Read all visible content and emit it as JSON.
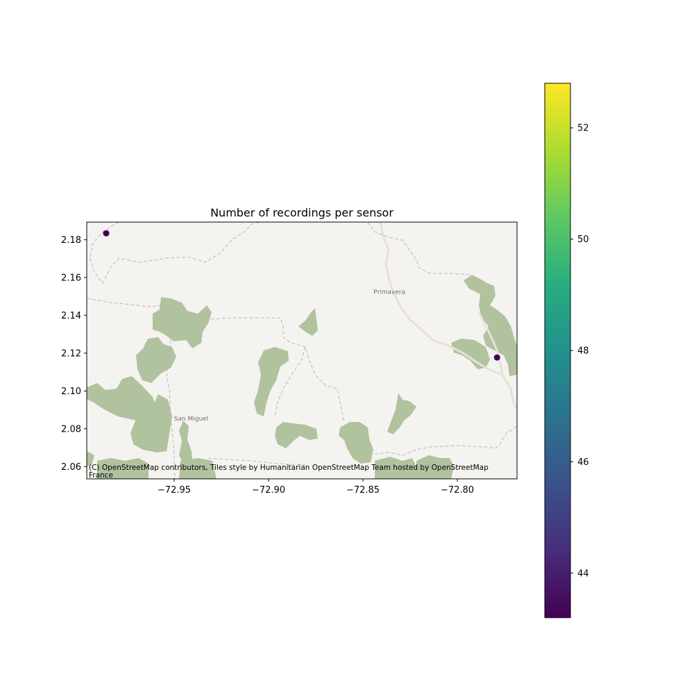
{
  "title": "Number of recordings per sensor",
  "attribution_line1": "(C) OpenStreetMap contributors, Tiles style by Humanitarian OpenStreetMap Team hosted by OpenStreetMap",
  "attribution_line2": "France",
  "places": [
    {
      "name": "Primavera",
      "lon": -72.836,
      "lat": 2.1525
    },
    {
      "name": "San Miguel",
      "lon": -72.941,
      "lat": 2.0855
    }
  ],
  "colors": {
    "map_background": "#f4f3ef",
    "land_vegetation": "#b1c29f",
    "road": "#e6e2d6",
    "boundary": "#b7b7b7"
  },
  "chart_data": {
    "type": "scatter",
    "x_label": "",
    "y_label": "",
    "xlim": [
      -72.9963,
      -72.7684
    ],
    "ylim": [
      2.0535,
      2.1893
    ],
    "x_ticks": [
      -72.95,
      -72.9,
      -72.85,
      -72.8
    ],
    "x_tick_labels": [
      "−72.95",
      "−72.90",
      "−72.85",
      "−72.80"
    ],
    "y_ticks": [
      2.06,
      2.08,
      2.1,
      2.12,
      2.14,
      2.16,
      2.18
    ],
    "y_tick_labels": [
      "2.06",
      "2.08",
      "2.10",
      "2.12",
      "2.14",
      "2.16",
      "2.18"
    ],
    "points": [
      {
        "x": -72.986,
        "y": 2.1834,
        "value": 43
      },
      {
        "x": -72.779,
        "y": 2.1177,
        "value": 43
      }
    ],
    "colorbar": {
      "colormap": "viridis",
      "min": 43.2,
      "max": 52.8,
      "ticks": [
        44,
        46,
        48,
        50,
        52
      ],
      "tick_labels": [
        "44",
        "46",
        "48",
        "50",
        "52"
      ]
    }
  }
}
